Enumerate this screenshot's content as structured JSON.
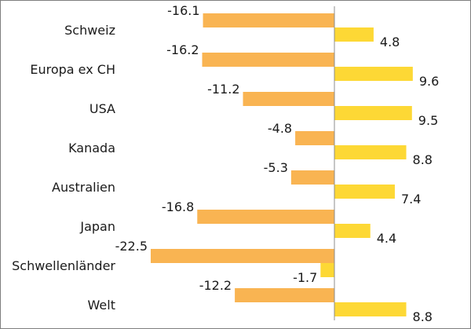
{
  "chart_data": {
    "type": "bar",
    "orientation": "horizontal",
    "categories": [
      "Schweiz",
      "Europa ex CH",
      "USA",
      "Kanada",
      "Australien",
      "Japan",
      "Schwellenländer",
      "Welt"
    ],
    "series": [
      {
        "values": [
          -16.1,
          -16.2,
          -11.2,
          -4.8,
          -5.3,
          -16.8,
          -22.5,
          -12.2
        ],
        "color": "#f9b452"
      },
      {
        "values": [
          4.8,
          9.6,
          9.5,
          8.8,
          7.4,
          4.4,
          -1.7,
          8.8
        ],
        "color": "#fdd835"
      }
    ],
    "value_labels": [
      [
        "-16.1",
        "-16.2",
        "-11.2",
        "-4.8",
        "-5.3",
        "-16.8",
        "-22.5",
        "-12.2"
      ],
      [
        "4.8",
        "9.6",
        "9.5",
        "8.8",
        "7.4",
        "4.4",
        "-1.7",
        "8.8"
      ]
    ],
    "xlim": [
      -22.5,
      13
    ],
    "grid": false,
    "legend": "none",
    "zero_axis_color": "#8c8c8c"
  }
}
